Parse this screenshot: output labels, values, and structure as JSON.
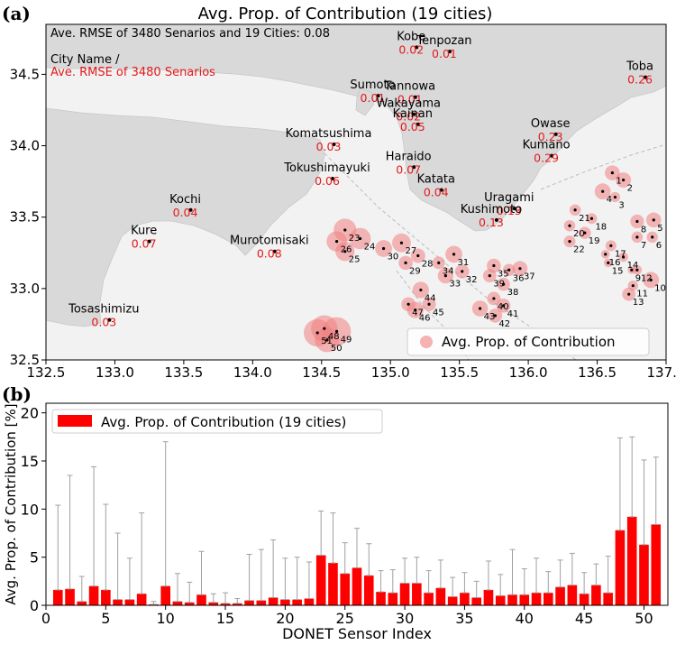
{
  "panel_a": {
    "label": "(a)",
    "title": "Avg. Prop. of Contribution (19 cities)",
    "note_rmse_overall": "Ave. RMSE of 3480 Senarios and 19 Cities: 0.08",
    "note_city_name": "City Name /",
    "note_city_rmse": "Ave. RMSE of 3480 Senarios",
    "legend": "Avg. Prop. of Contribution"
  },
  "panel_b": {
    "label": "(b)",
    "legend": "Avg. Prop. of Contribution (19 cities)"
  },
  "chart_data": [
    {
      "type": "scatter",
      "subtype": "map-bubble",
      "title": "Avg. Prop. of Contribution (19 cities)",
      "xlim": [
        132.5,
        137.0
      ],
      "ylim": [
        32.5,
        34.85
      ],
      "x_ticks": [
        "132.5",
        "133.0",
        "133.5",
        "134.0",
        "134.5",
        "135.0",
        "135.5",
        "136.0",
        "136.5",
        "137.0"
      ],
      "y_ticks": [
        "32.5",
        "33.0",
        "33.5",
        "34.0",
        "34.5"
      ],
      "grid": false,
      "legend_position": "bottom-right",
      "colors": {
        "city_dot": "#000000",
        "rmse_text": "#e31a1c",
        "bubble": "#f08080",
        "map_land": "#d9d9d9",
        "map_sea": "#f2f2f2"
      },
      "cities": [
        {
          "name": "Kobe",
          "rmse": "0.02",
          "lon": 135.19,
          "lat": 34.69
        },
        {
          "name": "Tenpozan",
          "rmse": "0.01",
          "lon": 135.43,
          "lat": 34.66
        },
        {
          "name": "Toba",
          "rmse": "0.26",
          "lon": 136.85,
          "lat": 34.48
        },
        {
          "name": "Sumoto",
          "rmse": "0.01",
          "lon": 134.91,
          "lat": 34.35
        },
        {
          "name": "Tannowa",
          "rmse": "0.01",
          "lon": 135.18,
          "lat": 34.34
        },
        {
          "name": "Wakayama",
          "rmse": "0.02",
          "lon": 135.17,
          "lat": 34.22
        },
        {
          "name": "Owase",
          "rmse": "0.23",
          "lon": 136.2,
          "lat": 34.08
        },
        {
          "name": "Kainan",
          "rmse": "0.05",
          "lon": 135.2,
          "lat": 34.15
        },
        {
          "name": "Komatsushima",
          "rmse": "0.03",
          "lon": 134.59,
          "lat": 34.01
        },
        {
          "name": "Kumano",
          "rmse": "0.29",
          "lon": 136.17,
          "lat": 33.93
        },
        {
          "name": "Haraido",
          "rmse": "0.07",
          "lon": 135.17,
          "lat": 33.85
        },
        {
          "name": "Tokushimayuki",
          "rmse": "0.06",
          "lon": 134.58,
          "lat": 33.77
        },
        {
          "name": "Uragami",
          "rmse": "0.13",
          "lon": 135.9,
          "lat": 33.56
        },
        {
          "name": "Katata",
          "rmse": "0.04",
          "lon": 135.37,
          "lat": 33.69
        },
        {
          "name": "Kochi",
          "rmse": "0.04",
          "lon": 133.55,
          "lat": 33.55
        },
        {
          "name": "Kushimoto",
          "rmse": "0.13",
          "lon": 135.77,
          "lat": 33.48
        },
        {
          "name": "Kure",
          "rmse": "0.07",
          "lon": 133.25,
          "lat": 33.33
        },
        {
          "name": "Murotomisaki",
          "rmse": "0.08",
          "lon": 134.16,
          "lat": 33.26
        },
        {
          "name": "Tosashimizu",
          "rmse": "0.03",
          "lon": 132.96,
          "lat": 32.78
        }
      ],
      "sensors": [
        {
          "id": "1",
          "lon": 136.61,
          "lat": 33.81
        },
        {
          "id": "2",
          "lon": 136.69,
          "lat": 33.76
        },
        {
          "id": "3",
          "lon": 136.63,
          "lat": 33.64
        },
        {
          "id": "4",
          "lon": 136.54,
          "lat": 33.68
        },
        {
          "id": "5",
          "lon": 136.91,
          "lat": 33.48
        },
        {
          "id": "6",
          "lon": 136.9,
          "lat": 33.36
        },
        {
          "id": "7",
          "lon": 136.79,
          "lat": 33.36
        },
        {
          "id": "8",
          "lon": 136.79,
          "lat": 33.47
        },
        {
          "id": "9",
          "lon": 136.75,
          "lat": 33.13
        },
        {
          "id": "10",
          "lon": 136.89,
          "lat": 33.06
        },
        {
          "id": "11",
          "lon": 136.76,
          "lat": 33.02
        },
        {
          "id": "12",
          "lon": 136.79,
          "lat": 33.13
        },
        {
          "id": "13",
          "lon": 136.73,
          "lat": 32.96
        },
        {
          "id": "14",
          "lon": 136.69,
          "lat": 33.22
        },
        {
          "id": "15",
          "lon": 136.58,
          "lat": 33.18
        },
        {
          "id": "16",
          "lon": 136.56,
          "lat": 33.24
        },
        {
          "id": "17",
          "lon": 136.6,
          "lat": 33.3
        },
        {
          "id": "18",
          "lon": 136.46,
          "lat": 33.49
        },
        {
          "id": "19",
          "lon": 136.41,
          "lat": 33.39
        },
        {
          "id": "20",
          "lon": 136.3,
          "lat": 33.44
        },
        {
          "id": "21",
          "lon": 136.34,
          "lat": 33.55
        },
        {
          "id": "22",
          "lon": 136.3,
          "lat": 33.33
        },
        {
          "id": "23",
          "lon": 134.67,
          "lat": 33.41
        },
        {
          "id": "24",
          "lon": 134.78,
          "lat": 33.35
        },
        {
          "id": "25",
          "lon": 134.67,
          "lat": 33.26
        },
        {
          "id": "26",
          "lon": 134.61,
          "lat": 33.33
        },
        {
          "id": "27",
          "lon": 135.08,
          "lat": 33.32
        },
        {
          "id": "28",
          "lon": 135.2,
          "lat": 33.23
        },
        {
          "id": "29",
          "lon": 135.11,
          "lat": 33.18
        },
        {
          "id": "30",
          "lon": 134.95,
          "lat": 33.28
        },
        {
          "id": "31",
          "lon": 135.46,
          "lat": 33.24
        },
        {
          "id": "32",
          "lon": 135.52,
          "lat": 33.12
        },
        {
          "id": "33",
          "lon": 135.4,
          "lat": 33.09
        },
        {
          "id": "34",
          "lon": 135.35,
          "lat": 33.18
        },
        {
          "id": "35",
          "lon": 135.75,
          "lat": 33.16
        },
        {
          "id": "36",
          "lon": 135.86,
          "lat": 33.13
        },
        {
          "id": "37",
          "lon": 135.94,
          "lat": 33.14
        },
        {
          "id": "38",
          "lon": 135.82,
          "lat": 33.03
        },
        {
          "id": "39",
          "lon": 135.72,
          "lat": 33.09
        },
        {
          "id": "40",
          "lon": 135.75,
          "lat": 32.93
        },
        {
          "id": "41",
          "lon": 135.82,
          "lat": 32.88
        },
        {
          "id": "42",
          "lon": 135.76,
          "lat": 32.81
        },
        {
          "id": "43",
          "lon": 135.65,
          "lat": 32.86
        },
        {
          "id": "44",
          "lon": 135.22,
          "lat": 32.99
        },
        {
          "id": "45",
          "lon": 135.28,
          "lat": 32.89
        },
        {
          "id": "46",
          "lon": 135.18,
          "lat": 32.85
        },
        {
          "id": "47",
          "lon": 135.13,
          "lat": 32.89
        },
        {
          "id": "48",
          "lon": 134.52,
          "lat": 32.72
        },
        {
          "id": "49",
          "lon": 134.61,
          "lat": 32.7
        },
        {
          "id": "50",
          "lon": 134.54,
          "lat": 32.64
        },
        {
          "id": "51",
          "lon": 134.47,
          "lat": 32.69
        }
      ]
    },
    {
      "type": "bar",
      "xlabel": "DONET Sensor Index",
      "ylabel": "Avg. Prop. of Contribution [%]",
      "xlim": [
        0,
        52
      ],
      "ylim": [
        0,
        21
      ],
      "x_ticks": [
        "0",
        "5",
        "10",
        "15",
        "20",
        "25",
        "30",
        "35",
        "40",
        "45",
        "50"
      ],
      "y_ticks": [
        "0",
        "5",
        "10",
        "15",
        "20"
      ],
      "grid": false,
      "legend_position": "top-left",
      "colors": {
        "bar": "#ff0000",
        "error_bar": "#a0a0a0"
      },
      "categories": [
        1,
        2,
        3,
        4,
        5,
        6,
        7,
        8,
        9,
        10,
        11,
        12,
        13,
        14,
        15,
        16,
        17,
        18,
        19,
        20,
        21,
        22,
        23,
        24,
        25,
        26,
        27,
        28,
        29,
        30,
        31,
        32,
        33,
        34,
        35,
        36,
        37,
        38,
        39,
        40,
        41,
        42,
        43,
        44,
        45,
        46,
        47,
        48,
        49,
        50,
        51
      ],
      "values": [
        1.6,
        1.7,
        0.4,
        2.0,
        1.6,
        0.6,
        0.6,
        1.2,
        0.1,
        2.0,
        0.4,
        0.3,
        1.1,
        0.3,
        0.2,
        0.2,
        0.5,
        0.5,
        0.8,
        0.6,
        0.6,
        0.7,
        5.2,
        4.4,
        3.3,
        3.9,
        3.1,
        1.4,
        1.3,
        2.3,
        2.3,
        1.3,
        1.8,
        0.9,
        1.3,
        0.8,
        1.6,
        1.0,
        1.1,
        1.1,
        1.3,
        1.3,
        1.9,
        2.1,
        1.2,
        2.1,
        1.3,
        7.8,
        9.2,
        6.3,
        8.4
      ],
      "error_upper": [
        10.4,
        13.5,
        3.0,
        14.4,
        10.5,
        7.5,
        4.9,
        9.6,
        0.4,
        17.0,
        3.3,
        2.4,
        5.6,
        1.2,
        1.3,
        0.7,
        5.3,
        5.8,
        6.8,
        4.9,
        5.0,
        4.5,
        9.8,
        9.6,
        6.5,
        8.0,
        6.4,
        3.6,
        3.7,
        4.9,
        5.0,
        3.6,
        4.7,
        2.9,
        3.4,
        2.5,
        4.6,
        3.2,
        5.8,
        3.8,
        4.9,
        3.5,
        4.7,
        5.4,
        3.4,
        4.3,
        5.1,
        17.4,
        17.5,
        15.1,
        15.4
      ]
    }
  ]
}
